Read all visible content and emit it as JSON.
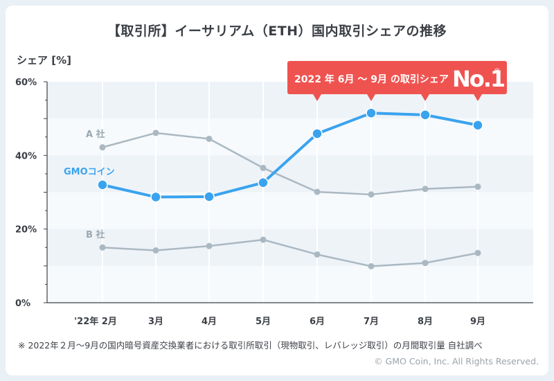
{
  "title": "【取引所】イーサリアム（ETH）国内取引シェアの推移",
  "ylabel": "シェア [%]",
  "callout": {
    "text": "2022 年 6月 〜 9月 の取引シェア",
    "badge": "No.1",
    "mark": "※"
  },
  "footnote": "※ 2022年２月〜9月の国内暗号資産交換業者における取引所取引（現物取引、レバレッジ取引）の月間取引量 自社調べ",
  "copyright": "© GMO Coin, Inc. All Rights Reserved.",
  "colors": {
    "gmo": "#3aa3ee",
    "others": "#aab8c2",
    "callout": "#ef5350",
    "band": "#eef3f8"
  },
  "chart_data": {
    "type": "line",
    "categories": [
      "'22年 2月",
      "3月",
      "4月",
      "5月",
      "6月",
      "7月",
      "8月",
      "9月"
    ],
    "yticks": [
      "0%",
      "20%",
      "40%",
      "60%"
    ],
    "ylim": [
      0,
      60
    ],
    "series": [
      {
        "name": "GMOコイン",
        "values": [
          32,
          28.7,
          28.8,
          32.6,
          45.9,
          51.5,
          51,
          48.2
        ],
        "color": "#3aa3ee"
      },
      {
        "name": "A 社",
        "values": [
          42.2,
          46.1,
          44.5,
          36.6,
          30.1,
          29.4,
          30.9,
          31.5
        ],
        "color": "#aab8c2"
      },
      {
        "name": "B 社",
        "values": [
          15,
          14.2,
          15.4,
          17.1,
          13.1,
          9.9,
          10.8,
          13.5
        ],
        "color": "#aab8c2"
      }
    ],
    "callout_months": [
      "6月",
      "7月",
      "8月",
      "9月"
    ]
  }
}
